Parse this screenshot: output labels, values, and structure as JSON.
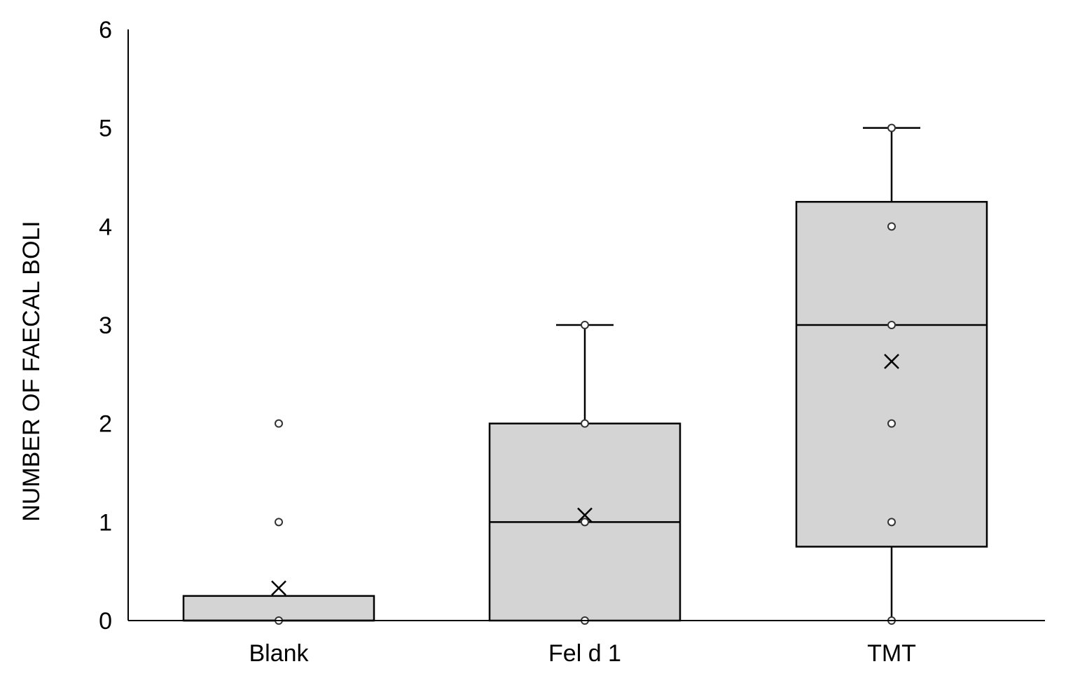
{
  "chart_data": {
    "type": "box",
    "title": "",
    "xlabel": "",
    "ylabel": "NUMBER OF FAECAL BOLI",
    "ylim": [
      0,
      6
    ],
    "yticks": [
      "0",
      "1",
      "2",
      "3",
      "4",
      "5",
      "6"
    ],
    "grid": false,
    "box_fill": "#d4d4d4",
    "categories": [
      "Blank",
      "Fel d 1",
      "TMT"
    ],
    "boxes": [
      {
        "name": "Blank",
        "whisker_low": 0,
        "q1": 0,
        "median": 0,
        "q3": 0.25,
        "whisker_high": 0.25,
        "mean": 0.33,
        "points": [
          0,
          1,
          2
        ]
      },
      {
        "name": "Fel d 1",
        "whisker_low": 0,
        "q1": 0,
        "median": 1,
        "q3": 2,
        "whisker_high": 3,
        "mean": 1.07,
        "points": [
          0,
          1,
          2,
          3
        ]
      },
      {
        "name": "TMT",
        "whisker_low": 0,
        "q1": 0.75,
        "median": 3,
        "q3": 4.25,
        "whisker_high": 5,
        "mean": 2.63,
        "points": [
          0,
          1,
          2,
          3,
          4,
          5
        ]
      }
    ]
  }
}
